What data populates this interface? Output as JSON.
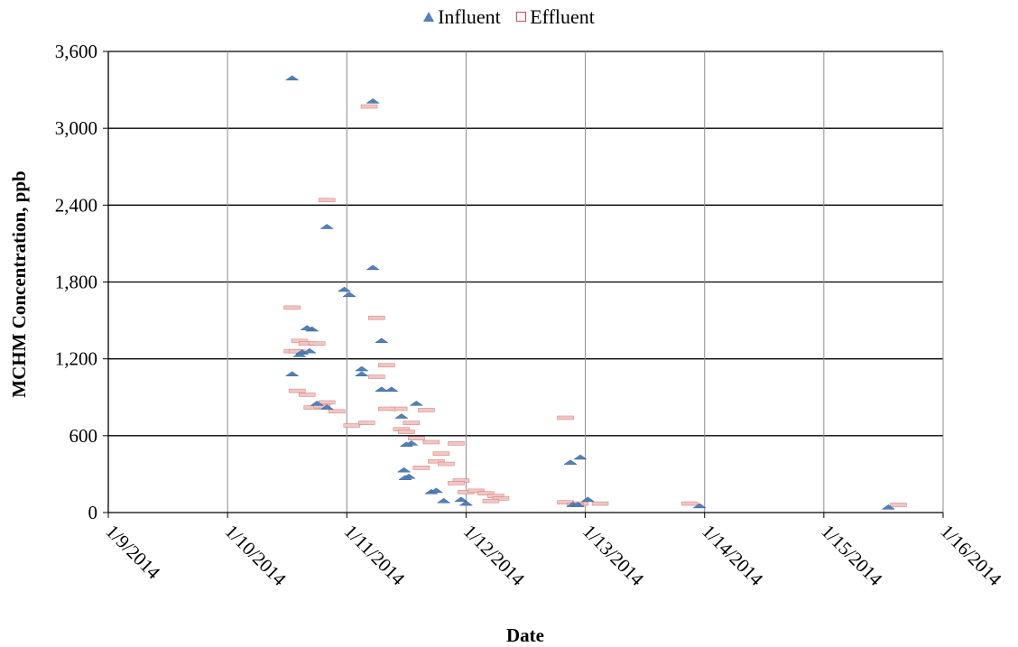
{
  "chart_data": {
    "type": "scatter",
    "xlabel": "Date",
    "ylabel": "MCHM Concentration, ppb",
    "x_tick_labels": [
      "1/9/2014",
      "1/10/2014",
      "1/11/2014",
      "1/12/2014",
      "1/13/2014",
      "1/14/2014",
      "1/15/2014",
      "1/16/2014"
    ],
    "x_range": [
      "2014-01-09",
      "2014-01-16"
    ],
    "ylim": [
      0,
      3600
    ],
    "y_ticks": [
      0,
      600,
      1200,
      1800,
      2400,
      3000,
      3600
    ],
    "y_tick_labels": [
      "0",
      "600",
      "1,200",
      "1,800",
      "2,400",
      "3,000",
      "3,600"
    ],
    "grid": true,
    "legend_position": "top-center",
    "series": [
      {
        "name": "Influent",
        "marker": "triangle",
        "color": "#4f81bd",
        "points": [
          [
            "2014-01-10 13:00",
            3390
          ],
          [
            "2014-01-11 05:15",
            3210
          ],
          [
            "2014-01-10 20:00",
            2230
          ],
          [
            "2014-01-11 05:15",
            1910
          ],
          [
            "2014-01-10 23:30",
            1740
          ],
          [
            "2014-01-11 00:30",
            1700
          ],
          [
            "2014-01-10 17:00",
            1430
          ],
          [
            "2014-01-10 16:00",
            1440
          ],
          [
            "2014-01-11 07:00",
            1340
          ],
          [
            "2014-01-10 15:00",
            1250
          ],
          [
            "2014-01-10 16:30",
            1260
          ],
          [
            "2014-01-10 14:30",
            1230
          ],
          [
            "2014-01-11 03:00",
            1120
          ],
          [
            "2014-01-11 03:00",
            1080
          ],
          [
            "2014-01-10 13:00",
            1080
          ],
          [
            "2014-01-11 07:00",
            960
          ],
          [
            "2014-01-11 09:00",
            960
          ],
          [
            "2014-01-10 18:00",
            850
          ],
          [
            "2014-01-10 20:00",
            820
          ],
          [
            "2014-01-11 14:00",
            850
          ],
          [
            "2014-01-11 11:00",
            750
          ],
          [
            "2014-01-11 13:00",
            540
          ],
          [
            "2014-01-11 12:00",
            530
          ],
          [
            "2014-01-11 11:30",
            330
          ],
          [
            "2014-01-11 12:30",
            280
          ],
          [
            "2014-01-11 11:45",
            270
          ],
          [
            "2014-01-11 17:00",
            160
          ],
          [
            "2014-01-11 18:00",
            170
          ],
          [
            "2014-01-11 19:30",
            90
          ],
          [
            "2014-01-12 00:00",
            70
          ],
          [
            "2014-01-11 23:00",
            100
          ],
          [
            "2014-01-12 21:00",
            390
          ],
          [
            "2014-01-12 23:00",
            430
          ],
          [
            "2014-01-13 00:30",
            100
          ],
          [
            "2014-01-12 21:30",
            60
          ],
          [
            "2014-01-12 22:30",
            60
          ],
          [
            "2014-01-13 23:00",
            50
          ],
          [
            "2014-01-15 13:00",
            40
          ]
        ]
      },
      {
        "name": "Effluent",
        "marker": "square",
        "color": "#c0504d",
        "points": [
          [
            "2014-01-11 04:30",
            3170
          ],
          [
            "2014-01-10 20:00",
            2440
          ],
          [
            "2014-01-10 13:00",
            1600
          ],
          [
            "2014-01-11 06:00",
            1520
          ],
          [
            "2014-01-10 14:30",
            1340
          ],
          [
            "2014-01-10 16:00",
            1320
          ],
          [
            "2014-01-10 18:00",
            1320
          ],
          [
            "2014-01-10 13:00",
            1260
          ],
          [
            "2014-01-10 14:00",
            1260
          ],
          [
            "2014-01-11 08:00",
            1150
          ],
          [
            "2014-01-11 06:00",
            1060
          ],
          [
            "2014-01-10 14:00",
            950
          ],
          [
            "2014-01-10 16:00",
            920
          ],
          [
            "2014-01-10 20:00",
            860
          ],
          [
            "2014-01-10 17:00",
            820
          ],
          [
            "2014-01-10 19:00",
            830
          ],
          [
            "2014-01-10 22:00",
            790
          ],
          [
            "2014-01-11 10:30",
            810
          ],
          [
            "2014-01-11 16:00",
            800
          ],
          [
            "2014-01-11 08:00",
            810
          ],
          [
            "2014-01-11 01:00",
            680
          ],
          [
            "2014-01-11 04:00",
            700
          ],
          [
            "2014-01-11 13:00",
            700
          ],
          [
            "2014-01-11 11:00",
            650
          ],
          [
            "2014-01-11 12:00",
            630
          ],
          [
            "2014-01-11 14:00",
            580
          ],
          [
            "2014-01-11 17:00",
            550
          ],
          [
            "2014-01-11 22:00",
            540
          ],
          [
            "2014-01-11 19:00",
            460
          ],
          [
            "2014-01-11 18:00",
            400
          ],
          [
            "2014-01-11 20:00",
            380
          ],
          [
            "2014-01-11 15:00",
            350
          ],
          [
            "2014-01-11 23:00",
            250
          ],
          [
            "2014-01-11 22:00",
            230
          ],
          [
            "2014-01-12 00:00",
            160
          ],
          [
            "2014-01-12 02:00",
            170
          ],
          [
            "2014-01-12 04:00",
            150
          ],
          [
            "2014-01-12 06:00",
            130
          ],
          [
            "2014-01-12 07:00",
            110
          ],
          [
            "2014-01-12 05:00",
            90
          ],
          [
            "2014-01-12 20:00",
            740
          ],
          [
            "2014-01-12 20:00",
            80
          ],
          [
            "2014-01-12 23:00",
            70
          ],
          [
            "2014-01-12 22:00",
            60
          ],
          [
            "2014-01-13 03:00",
            70
          ],
          [
            "2014-01-13 21:00",
            70
          ],
          [
            "2014-01-15 15:00",
            60
          ]
        ]
      }
    ]
  }
}
